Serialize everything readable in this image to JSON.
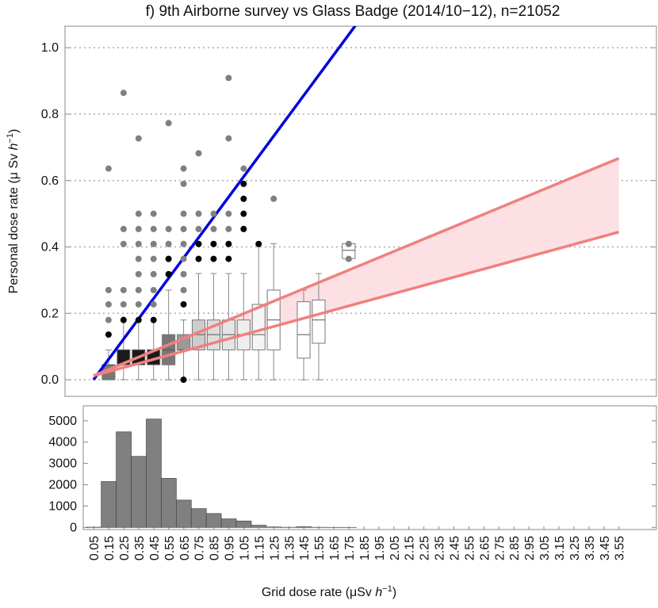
{
  "chart_data": [
    {
      "type": "box",
      "title": "f) 9th Airborne survey vs Glass Badge (2014/10−12), n=21052",
      "ylabel": [
        "Personal dose rate (μ Sv ",
        "h",
        "−1",
        ")"
      ],
      "x": [
        0.15,
        0.25,
        0.35,
        0.45,
        0.55,
        0.65,
        0.75,
        0.85,
        0.95,
        1.05,
        1.15,
        1.25,
        1.45,
        1.55,
        1.75
      ],
      "low": [
        0,
        0,
        0,
        0,
        0,
        0,
        0,
        0,
        0,
        0,
        0,
        0,
        0,
        0,
        0.36
      ],
      "q1": [
        0,
        0.045,
        0.045,
        0.045,
        0.045,
        0.09,
        0.09,
        0.09,
        0.09,
        0.09,
        0.09,
        0.09,
        0.065,
        0.11,
        0.365
      ],
      "median": [
        0.045,
        0.09,
        0.09,
        0.09,
        0.09,
        0.09,
        0.136,
        0.136,
        0.136,
        0.136,
        0.136,
        0.18,
        0.136,
        0.18,
        0.39
      ],
      "q3": [
        0.045,
        0.09,
        0.09,
        0.09,
        0.136,
        0.136,
        0.18,
        0.18,
        0.18,
        0.18,
        0.227,
        0.27,
        0.235,
        0.24,
        0.41
      ],
      "high": [
        0.09,
        0.18,
        0.18,
        0.18,
        0.27,
        0.18,
        0.32,
        0.32,
        0.32,
        0.32,
        0.41,
        0.41,
        0.27,
        0.32,
        0.41
      ],
      "box_colors": [
        "#777777",
        "#1a1a1a",
        "#1a1a1a",
        "#1a1a1a",
        "#777777",
        "#999999",
        "#cccccc",
        "#dddddd",
        "#e5e5e5",
        "#eeeeee",
        "#f5f5f5",
        "#ffffff",
        "#ffffff",
        "#ffffff",
        "#ffffff"
      ],
      "outliers": [
        {
          "color": "#808080",
          "x": [
            0.15,
            0.15,
            0.15,
            0.15,
            0.25,
            0.25,
            0.25,
            0.25,
            0.25,
            0.35,
            0.35,
            0.35,
            0.35,
            0.35,
            0.35,
            0.35,
            0.35,
            0.45,
            0.45,
            0.45,
            0.45,
            0.45,
            0.45,
            0.45,
            0.55,
            0.55,
            0.55,
            0.55,
            0.65,
            0.65,
            0.65,
            0.65,
            0.65,
            0.65,
            0.65,
            0.65,
            0.75,
            0.75,
            0.75,
            0.85,
            0.85,
            0.95,
            0.95,
            0.95,
            0.95,
            1.05,
            1.25,
            1.75,
            1.75
          ],
          "y": [
            0.636,
            0.27,
            0.227,
            0.18,
            0.864,
            0.454,
            0.409,
            0.27,
            0.227,
            0.727,
            0.5,
            0.454,
            0.409,
            0.364,
            0.318,
            0.27,
            0.227,
            0.5,
            0.454,
            0.409,
            0.364,
            0.318,
            0.27,
            0.227,
            0.773,
            0.454,
            0.409,
            0.364,
            0.636,
            0.59,
            0.5,
            0.454,
            0.409,
            0.364,
            0.318,
            0.27,
            0.682,
            0.5,
            0.454,
            0.5,
            0.454,
            0.909,
            0.727,
            0.5,
            0.454,
            0.636,
            0.545,
            0.409,
            0.364
          ]
        },
        {
          "color": "#000000",
          "x": [
            0.15,
            0.25,
            0.35,
            0.45,
            0.55,
            0.55,
            0.65,
            0.65,
            0.75,
            0.75,
            0.85,
            0.85,
            0.95,
            0.95,
            1.05,
            1.05,
            1.05,
            1.05,
            1.15
          ],
          "y": [
            0.136,
            0.18,
            0.18,
            0.18,
            0.364,
            0.318,
            0.227,
            0,
            0.409,
            0.364,
            0.409,
            0.364,
            0.409,
            0.364,
            0.59,
            0.545,
            0.5,
            0.454,
            0.409
          ]
        }
      ],
      "lines": [
        {
          "color": "#0000dd",
          "x": [
            0.05,
            1.8
          ],
          "y": [
            0,
            1.07
          ]
        },
        {
          "color": "#f08080",
          "x": [
            0.05,
            3.55
          ],
          "y": [
            0.012,
            0.667
          ]
        },
        {
          "color": "#f08080",
          "x": [
            0.05,
            3.55
          ],
          "y": [
            0.012,
            0.445
          ]
        }
      ],
      "band_color": "#fde0e4",
      "xlim": [
        -0.14,
        3.8
      ],
      "ylim": [
        -0.05,
        1.065
      ],
      "yticks": [
        {
          "value": 0,
          "label": "0.0"
        },
        0.2,
        0.4,
        0.6,
        0.8,
        {
          "value": 1,
          "label": "1.0"
        }
      ],
      "grid": true
    },
    {
      "type": "histogram",
      "xlabel": [
        "Grid dose rate (μSv ",
        "h",
        "−1",
        ")"
      ],
      "bins": [
        0.0,
        0.1,
        0.2,
        0.3,
        0.4,
        0.5,
        0.6,
        0.7,
        0.8,
        0.9,
        1.0,
        1.1,
        1.2,
        1.3,
        1.4,
        1.5,
        1.6,
        1.7,
        1.8,
        1.9,
        2.0,
        2.1,
        2.2,
        2.3,
        2.4,
        2.5,
        2.6,
        2.7,
        2.8,
        2.9,
        3.0,
        3.1,
        3.2,
        3.3,
        3.4,
        3.5,
        3.6
      ],
      "counts": [
        10,
        2150,
        4480,
        3330,
        5080,
        2300,
        1280,
        880,
        650,
        400,
        300,
        100,
        20,
        5,
        30,
        5,
        2,
        2,
        0,
        0,
        0,
        0,
        0,
        0,
        0,
        0,
        0,
        0,
        0,
        0,
        0,
        0,
        0,
        0,
        0,
        0
      ],
      "color": "#808080",
      "xlim": [
        -0.02,
        3.8
      ],
      "ylim": [
        -100,
        5700
      ],
      "xticks": [
        0.05,
        0.15,
        0.25,
        0.35,
        0.45,
        0.55,
        0.65,
        0.75,
        0.85,
        0.95,
        1.05,
        1.15,
        1.25,
        1.35,
        1.45,
        1.55,
        1.65,
        1.75,
        1.85,
        1.95,
        2.05,
        2.15,
        2.25,
        2.35,
        2.45,
        2.55,
        2.65,
        2.75,
        2.85,
        2.95,
        3.05,
        3.15,
        3.25,
        3.35,
        3.45,
        3.55
      ],
      "yticks": [
        0,
        1000,
        2000,
        3000,
        4000,
        5000
      ],
      "grid": false
    }
  ]
}
